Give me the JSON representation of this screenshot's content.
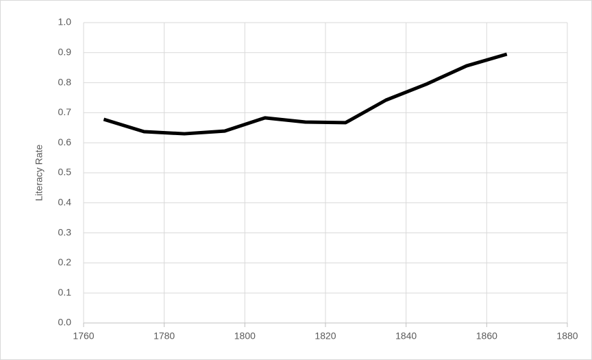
{
  "chart_data": {
    "type": "line",
    "y_label": "Literacy Rate",
    "x": [
      1765,
      1775,
      1785,
      1795,
      1805,
      1815,
      1825,
      1835,
      1845,
      1855,
      1865
    ],
    "series": [
      {
        "name": "Literacy Rate",
        "color": "#000000",
        "values": [
          0.678,
          0.637,
          0.63,
          0.639,
          0.683,
          0.669,
          0.667,
          0.742,
          0.795,
          0.856,
          0.895
        ]
      }
    ],
    "xlim": [
      1760,
      1880
    ],
    "xticks": [
      1760,
      1780,
      1800,
      1820,
      1840,
      1860,
      1880
    ],
    "ylim": [
      0,
      1
    ],
    "yticks": [
      {
        "value": 0,
        "label": "0.0"
      },
      0.1,
      0.2,
      0.3,
      0.4,
      0.5,
      0.6,
      0.7,
      0.8,
      0.9,
      {
        "value": 1,
        "label": "1.0"
      }
    ],
    "grid": true
  }
}
